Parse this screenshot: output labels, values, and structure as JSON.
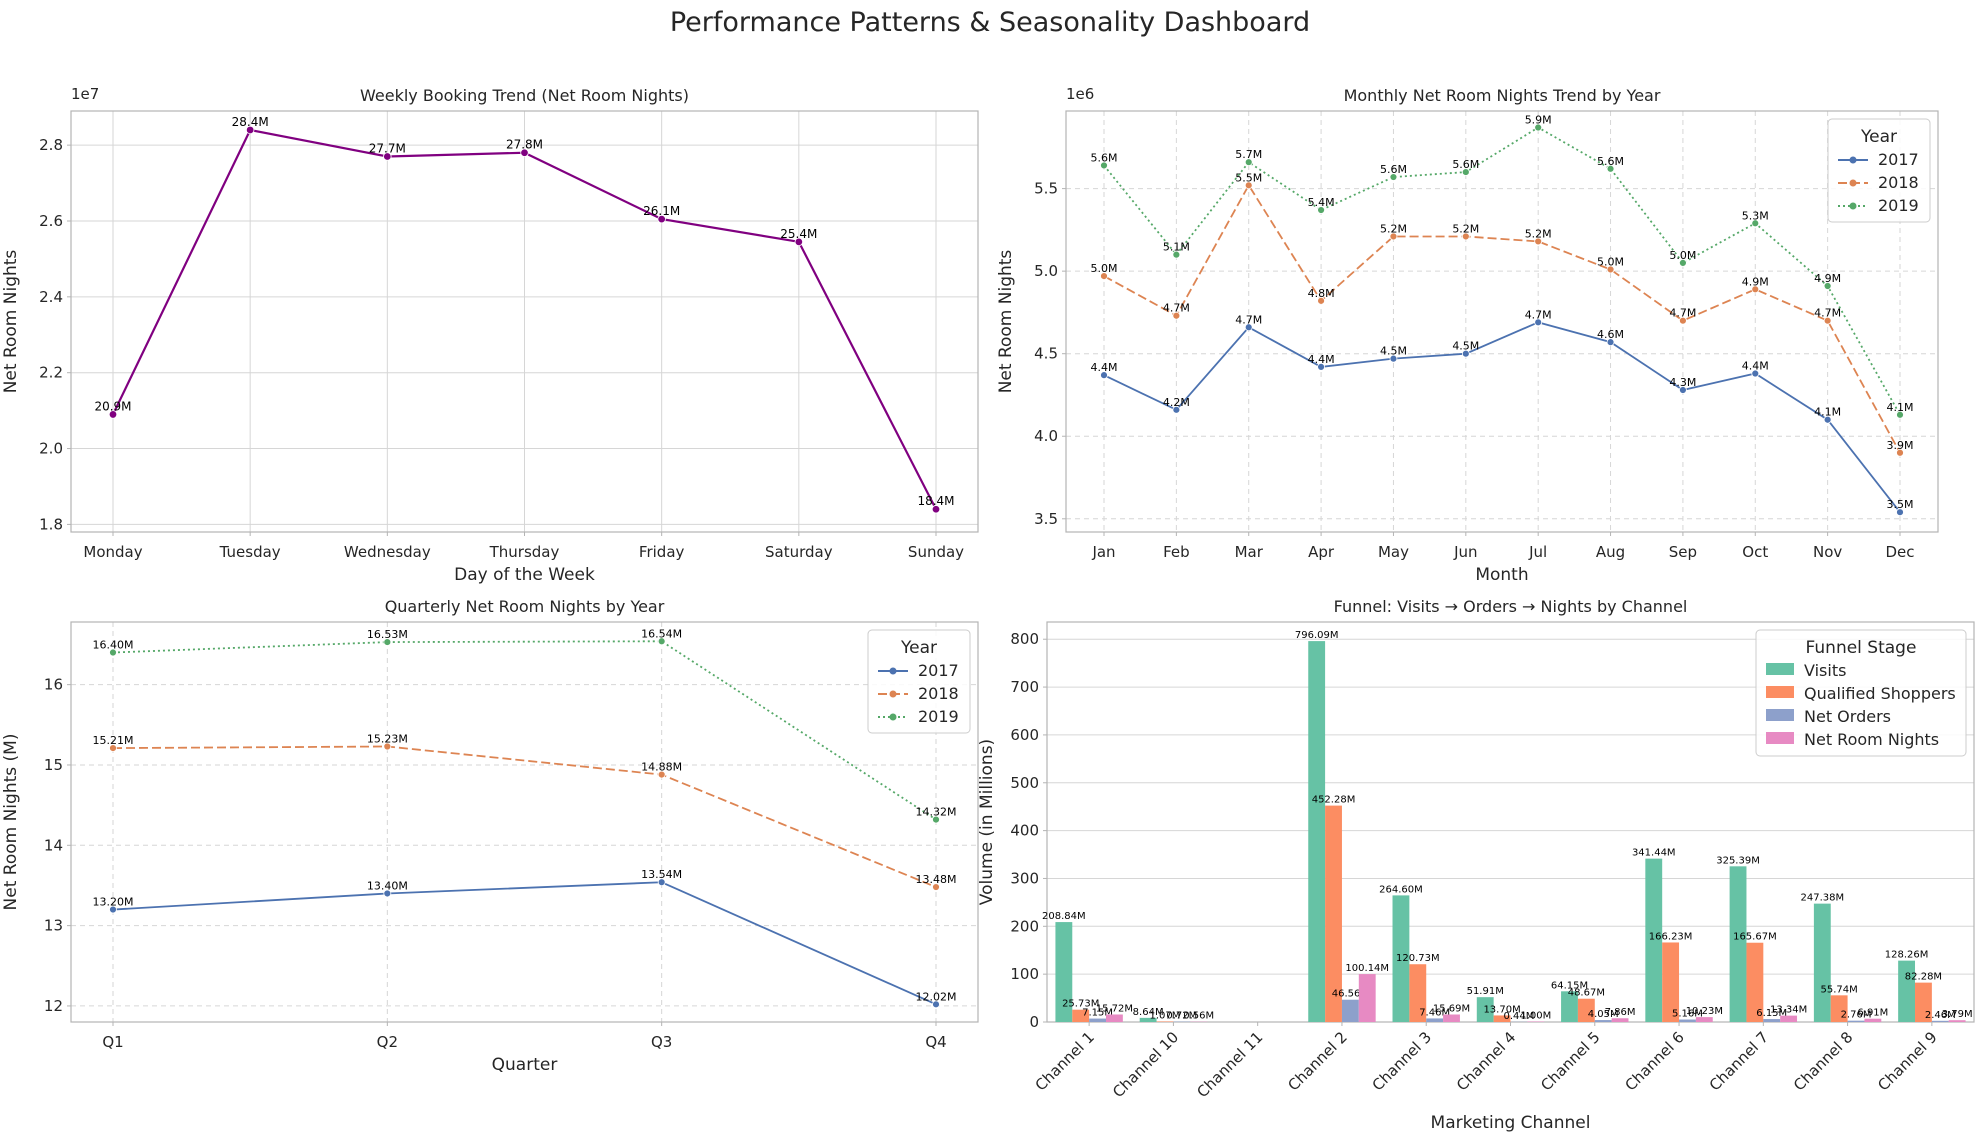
{
  "title": "Performance Patterns & Seasonality Dashboard",
  "colors": {
    "weekly_line": "#800080",
    "y2017": "#4c72b0",
    "y2018": "#dd8452",
    "y2019": "#55a868",
    "visits": "#66c2a5",
    "qualified": "#fc8d62",
    "orders": "#8da0cb",
    "nights": "#e78ac3",
    "grid": "#d6d6d6",
    "axis": "#b4b4b4",
    "text": "#262626"
  },
  "chart_data": [
    {
      "id": "weekly",
      "type": "line",
      "title": "Weekly Booking Trend (Net Room Nights)",
      "xlabel": "Day of the Week",
      "ylabel": "Net Room Nights",
      "offset_label": "1e7",
      "categories": [
        "Monday",
        "Tuesday",
        "Wednesday",
        "Thursday",
        "Friday",
        "Saturday",
        "Sunday"
      ],
      "values": [
        20900000,
        28400000,
        27700000,
        27800000,
        26050000,
        25450000,
        18400000
      ],
      "data_labels": [
        "20.9M",
        "28.4M",
        "27.7M",
        "27.8M",
        "26.1M",
        "25.4M",
        "18.4M"
      ],
      "yticks": [
        1.8,
        2.0,
        2.2,
        2.4,
        2.6,
        2.8
      ],
      "ytick_labels": [
        "1.8",
        "2.0",
        "2.2",
        "2.4",
        "2.6",
        "2.8"
      ],
      "ylim": [
        17800000,
        28900000
      ],
      "grid": true
    },
    {
      "id": "monthly",
      "type": "line",
      "title": "Monthly Net Room Nights Trend by Year",
      "xlabel": "Month",
      "ylabel": "Net Room Nights",
      "offset_label": "1e6",
      "categories": [
        "Jan",
        "Feb",
        "Mar",
        "Apr",
        "May",
        "Jun",
        "Jul",
        "Aug",
        "Sep",
        "Oct",
        "Nov",
        "Dec"
      ],
      "series": [
        {
          "name": "2017",
          "values": [
            4370000,
            4160000,
            4660000,
            4420000,
            4470000,
            4500000,
            4690000,
            4570000,
            4280000,
            4380000,
            4100000,
            3540000
          ],
          "labels": [
            "4.4M",
            "4.2M",
            "4.7M",
            "4.4M",
            "4.5M",
            "4.5M",
            "4.7M",
            "4.6M",
            "4.3M",
            "4.4M",
            "4.1M",
            "3.5M"
          ]
        },
        {
          "name": "2018",
          "values": [
            4970000,
            4730000,
            5520000,
            4820000,
            5210000,
            5210000,
            5180000,
            5010000,
            4700000,
            4890000,
            4700000,
            3900000
          ],
          "labels": [
            "5.0M",
            "4.7M",
            "5.5M",
            "4.8M",
            "5.2M",
            "5.2M",
            "5.2M",
            "5.0M",
            "4.7M",
            "4.9M",
            "4.7M",
            "3.9M"
          ]
        },
        {
          "name": "2019",
          "values": [
            5640000,
            5100000,
            5660000,
            5370000,
            5570000,
            5600000,
            5870000,
            5620000,
            5050000,
            5290000,
            4910000,
            4130000
          ],
          "labels": [
            "5.6M",
            "5.1M",
            "5.7M",
            "5.4M",
            "5.6M",
            "5.6M",
            "5.9M",
            "5.6M",
            "5.0M",
            "5.3M",
            "4.9M",
            "4.1M"
          ]
        }
      ],
      "yticks": [
        3.5,
        4.0,
        4.5,
        5.0,
        5.5
      ],
      "ytick_labels": [
        "3.5",
        "4.0",
        "4.5",
        "5.0",
        "5.5"
      ],
      "ylim": [
        3420000,
        5970000
      ],
      "legend_title": "Year",
      "legend": "top-right",
      "grid": true
    },
    {
      "id": "quarterly",
      "type": "line",
      "title": "Quarterly Net Room Nights by Year",
      "xlabel": "Quarter",
      "ylabel": "Net Room Nights (M)",
      "categories": [
        "Q1",
        "Q2",
        "Q3",
        "Q4"
      ],
      "series": [
        {
          "name": "2017",
          "values": [
            13.2,
            13.4,
            13.54,
            12.02
          ],
          "labels": [
            "13.20M",
            "13.40M",
            "13.54M",
            "12.02M"
          ]
        },
        {
          "name": "2018",
          "values": [
            15.21,
            15.23,
            14.88,
            13.48
          ],
          "labels": [
            "15.21M",
            "15.23M",
            "14.88M",
            "13.48M"
          ]
        },
        {
          "name": "2019",
          "values": [
            16.4,
            16.53,
            16.54,
            14.32
          ],
          "labels": [
            "16.40M",
            "16.53M",
            "16.54M",
            "14.32M"
          ]
        }
      ],
      "yticks": [
        12,
        13,
        14,
        15,
        16
      ],
      "ytick_labels": [
        "12",
        "13",
        "14",
        "15",
        "16"
      ],
      "ylim": [
        11.8,
        16.78
      ],
      "legend_title": "Year",
      "legend": "top-right",
      "grid": true
    },
    {
      "id": "funnel",
      "type": "bar",
      "title": "Funnel: Visits → Orders → Nights by Channel",
      "xlabel": "Marketing Channel",
      "ylabel": "Volume (in Millions)",
      "categories": [
        "Channel 1",
        "Channel 10",
        "Channel 11",
        "Channel 2",
        "Channel 3",
        "Channel 4",
        "Channel 5",
        "Channel 6",
        "Channel 7",
        "Channel 8",
        "Channel 9"
      ],
      "series": [
        {
          "name": "Visits",
          "values": [
            208.84,
            8.64,
            null,
            796.09,
            264.6,
            51.91,
            64.15,
            341.44,
            325.39,
            247.38,
            128.26
          ],
          "labels": [
            "208.84M",
            "8.64M",
            "",
            "796.09M",
            "264.60M",
            "51.91M",
            "64.15M",
            "341.44M",
            "325.39M",
            "247.38M",
            "128.26M"
          ]
        },
        {
          "name": "Qualified Shoppers",
          "values": [
            25.73,
            1.07,
            null,
            452.28,
            120.73,
            13.7,
            48.67,
            166.23,
            165.67,
            55.74,
            82.28
          ],
          "labels": [
            "25.73M",
            "1.07M",
            "",
            "452.28M",
            "120.73M",
            "13.70M",
            "48.67M",
            "166.23M",
            "165.67M",
            "55.74M",
            "82.28M"
          ]
        },
        {
          "name": "Net Orders",
          "values": [
            7.15,
            0.72,
            null,
            46.56,
            7.46,
            0.44,
            4.05,
            5.16,
            6.15,
            2.76,
            2.46
          ],
          "labels": [
            "7.15M",
            "0.72M",
            "",
            "46.56M",
            "7.46M",
            "0.44M",
            "4.05M",
            "5.16M",
            "6.15M",
            "2.76M",
            "2.46M"
          ]
        },
        {
          "name": "Net Room Nights",
          "values": [
            15.72,
            0.56,
            null,
            100.14,
            15.69,
            1.0,
            7.86,
            10.23,
            13.34,
            6.91,
            3.79
          ],
          "labels": [
            "15.72M",
            "0.56M",
            "",
            "100.14M",
            "15.69M",
            "1.00M",
            "7.86M",
            "10.23M",
            "13.34M",
            "6.91M",
            "3.79M"
          ]
        }
      ],
      "yticks": [
        0,
        100,
        200,
        300,
        400,
        500,
        600,
        700,
        800
      ],
      "ytick_labels": [
        "0",
        "100",
        "200",
        "300",
        "400",
        "500",
        "600",
        "700",
        "800"
      ],
      "ylim": [
        0,
        836
      ],
      "legend_title": "Funnel Stage",
      "legend": "top-right",
      "grid": true
    }
  ]
}
